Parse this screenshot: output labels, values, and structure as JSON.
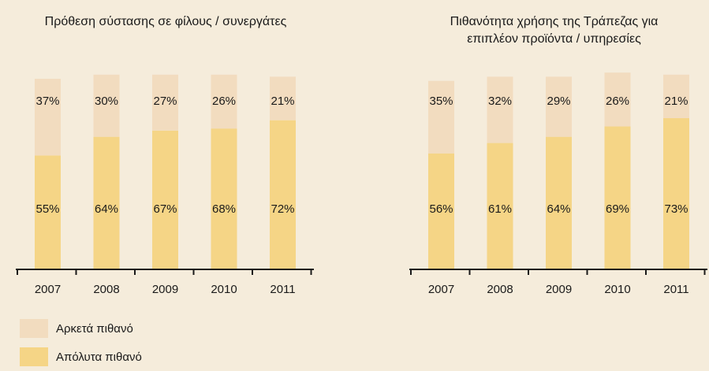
{
  "colors": {
    "background": "#f5ecdb",
    "fairly_likely": "#f2dcbf",
    "absolutely_likely": "#f5d586",
    "axis": "#1a1a1a"
  },
  "legend": {
    "fairly_likely": "Αρκετά πιθανό",
    "absolutely_likely": "Απόλυτα πιθανό"
  },
  "chart_data": [
    {
      "type": "bar",
      "stacked": true,
      "title": "Πρόθεση σύστασης σε φίλους / συνεργάτες",
      "categories": [
        "2007",
        "2008",
        "2009",
        "2010",
        "2011"
      ],
      "series": [
        {
          "name": "Απόλυτα πιθανό",
          "values": [
            55,
            64,
            67,
            68,
            72
          ],
          "labels": [
            "55%",
            "64%",
            "67%",
            "68%",
            "72%"
          ]
        },
        {
          "name": "Αρκετά πιθανό",
          "values": [
            37,
            30,
            27,
            26,
            21
          ],
          "labels": [
            "37%",
            "30%",
            "27%",
            "26%",
            "21%"
          ]
        }
      ],
      "ylim": [
        0,
        92
      ]
    },
    {
      "type": "bar",
      "stacked": true,
      "title": "Πιθανότητα χρήσης της Τράπεζας για επιπλέον προϊόντα / υπηρεσίες",
      "title_lines": [
        "Πιθανότητα χρήσης της Τράπεζας για",
        "επιπλέον προϊόντα / υπηρεσίες"
      ],
      "categories": [
        "2007",
        "2008",
        "2009",
        "2010",
        "2011"
      ],
      "series": [
        {
          "name": "Απόλυτα πιθανό",
          "values": [
            56,
            61,
            64,
            69,
            73
          ],
          "labels": [
            "56%",
            "61%",
            "64%",
            "69%",
            "73%"
          ]
        },
        {
          "name": "Αρκετά πιθανό",
          "values": [
            35,
            32,
            29,
            26,
            21
          ],
          "labels": [
            "35%",
            "32%",
            "29%",
            "26%",
            "21%"
          ]
        }
      ],
      "ylim": [
        0,
        92
      ]
    }
  ]
}
